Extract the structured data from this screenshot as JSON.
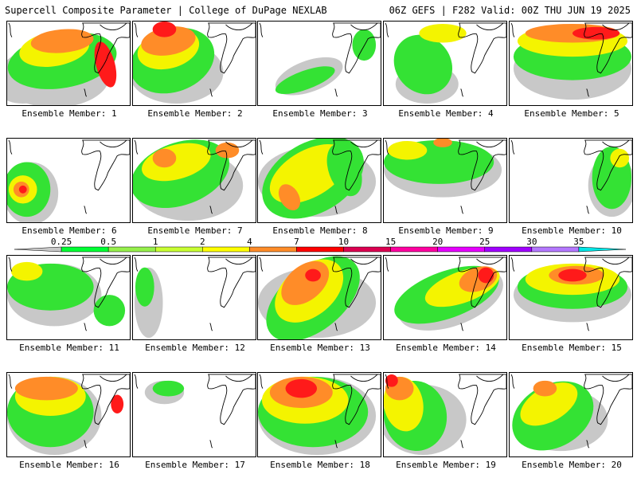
{
  "header": {
    "title": "Supercell Composite Parameter | College of DuPage NEXLAB",
    "run_info": "06Z GEFS | F282 Valid: 00Z THU JUN 19 2025"
  },
  "members": [
    "Ensemble Member: 1",
    "Ensemble Member: 2",
    "Ensemble Member: 3",
    "Ensemble Member: 4",
    "Ensemble Member: 5",
    "Ensemble Member: 6",
    "Ensemble Member: 7",
    "Ensemble Member: 8",
    "Ensemble Member: 9",
    "Ensemble Member: 10",
    "Ensemble Member: 11",
    "Ensemble Member: 12",
    "Ensemble Member: 13",
    "Ensemble Member: 14",
    "Ensemble Member: 15",
    "Ensemble Member: 16",
    "Ensemble Member: 17",
    "Ensemble Member: 18",
    "Ensemble Member: 19",
    "Ensemble Member: 20"
  ],
  "colorbar": {
    "levels": [
      "0.25",
      "0.5",
      "1",
      "2",
      "4",
      "7",
      "10",
      "15",
      "20",
      "25",
      "30",
      "35"
    ],
    "colors": [
      "#c8c8c8",
      "#00ff33",
      "#96f04b",
      "#c8ff32",
      "#ffff00",
      "#ff8c28",
      "#ff0000",
      "#dc0050",
      "#ff00a0",
      "#e600ff",
      "#a000ff",
      "#b478ff",
      "#00e6e6"
    ]
  },
  "fill_colors": {
    "gray": "#c8c8c8",
    "green": "#34e234",
    "lightgreen": "#a8f05a",
    "yellow": "#f4f400",
    "orange": "#ff8c28",
    "red": "#ff1a1a",
    "magenta": "#e0007a"
  }
}
